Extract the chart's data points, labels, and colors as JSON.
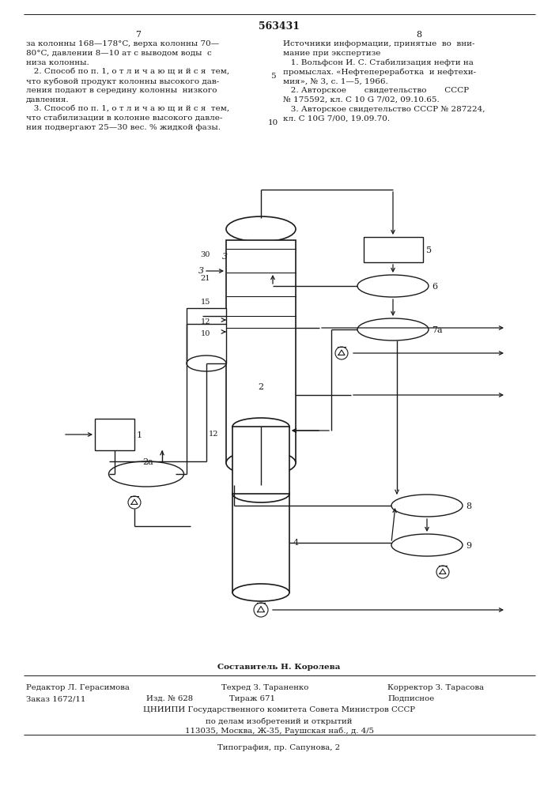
{
  "patent_number": "563431",
  "col_left": "7",
  "col_right": "8",
  "left_text": [
    "за колонны 168—178°C, верха колонны 70—",
    "80°C, давлении 8—10 ат с выводом воды  с",
    "низа колонны.",
    "   2. Способ по п. 1, о т л и ч а ю щ и й с я  тем,",
    "что кубовой продукт колонны высокого дав-",
    "ления подают в середину колонны  низкого",
    "давления.",
    "   3. Способ по п. 1, о т л и ч а ю щ и й с я  тем,",
    "что стабилизации в колонне высокого давле-",
    "ния подвергают 25—30 вес. % жидкой фазы."
  ],
  "right_header": "Источники информации, принятые  во  вни-",
  "right_header2": "мание при экспертизе",
  "right_text": [
    "   1. Вольфсон И. С. Стабилизация нефти на",
    "промыслах. «Нефтепереработка  и нефтехи-",
    "мия», № 3, с. 1—5, 1966.",
    "   2. Авторское       свидетельство       СССР",
    "№ 175592, кл. C 10 G 7/02, 09.10.65.",
    "   3. Авторское свидетельство СССР № 287224,",
    "кл. C 10G 7/00, 19.09.70."
  ],
  "linenum_5": "5",
  "linenum_10": "10",
  "footer_composer": "Составитель Н. Королева",
  "footer_editor": "Редактор Л. Герасимова",
  "footer_tech": "Техред З. Тараненко",
  "footer_corrector": "Корректор З. Тарасова",
  "footer_order": "Заказ 1672/11",
  "footer_izd": "Изд. № 628",
  "footer_tirazh": "Тираж 671",
  "footer_podpisnoe": "Подписное",
  "footer_cniipи": "ЦНИИПИ Государственного комитета Совета Министров СССР",
  "footer_affairs": "по делам изобретений и открытий",
  "footer_address": "113035, Москва, Ж-35, Раушская наб., д. 4/5",
  "footer_typografia": "Типография, пр. Сапунова, 2",
  "bg_color": "#ffffff",
  "text_color": "#1a1a1a",
  "line_color": "#1a1a1a"
}
